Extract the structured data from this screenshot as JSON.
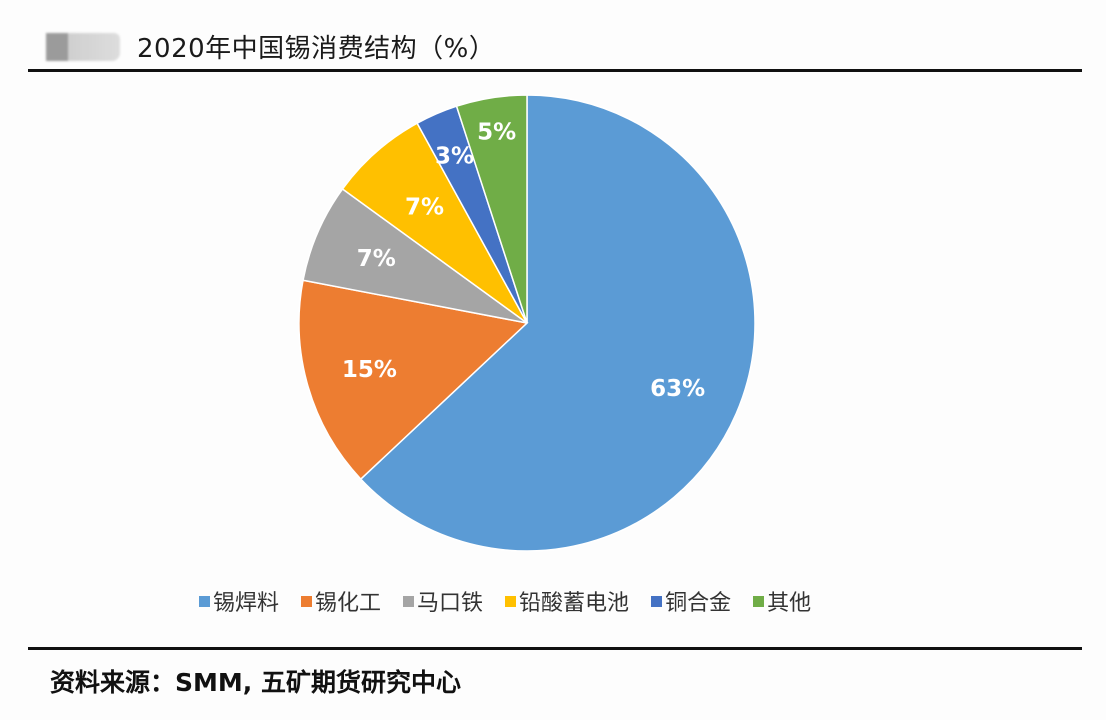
{
  "header": {
    "title": "2020年中国锡消费结构（%）"
  },
  "chart_data": {
    "type": "pie",
    "title": "2020年中国锡消费结构（%）",
    "categories": [
      "锡焊料",
      "锡化工",
      "马口铁",
      "铅酸蓄电池",
      "铜合金",
      "其他"
    ],
    "values": [
      63,
      15,
      7,
      7,
      3,
      5
    ],
    "labels": [
      "63%",
      "15%",
      "7%",
      "7%",
      "3%",
      "5%"
    ],
    "colors": [
      "#5B9BD5",
      "#ED7D31",
      "#A5A5A5",
      "#FFC000",
      "#4472C4",
      "#70AD47"
    ],
    "legend_position": "bottom",
    "start_angle": "12 o'clock, clockwise"
  },
  "legend": {
    "items": [
      {
        "label": "锡焊料",
        "color": "#5B9BD5"
      },
      {
        "label": "锡化工",
        "color": "#ED7D31"
      },
      {
        "label": "马口铁",
        "color": "#A5A5A5"
      },
      {
        "label": "铅酸蓄电池",
        "color": "#FFC000"
      },
      {
        "label": "铜合金",
        "color": "#4472C4"
      },
      {
        "label": "其他",
        "color": "#70AD47"
      }
    ]
  },
  "footer": {
    "source": "资料来源：SMM, 五矿期货研究中心"
  }
}
